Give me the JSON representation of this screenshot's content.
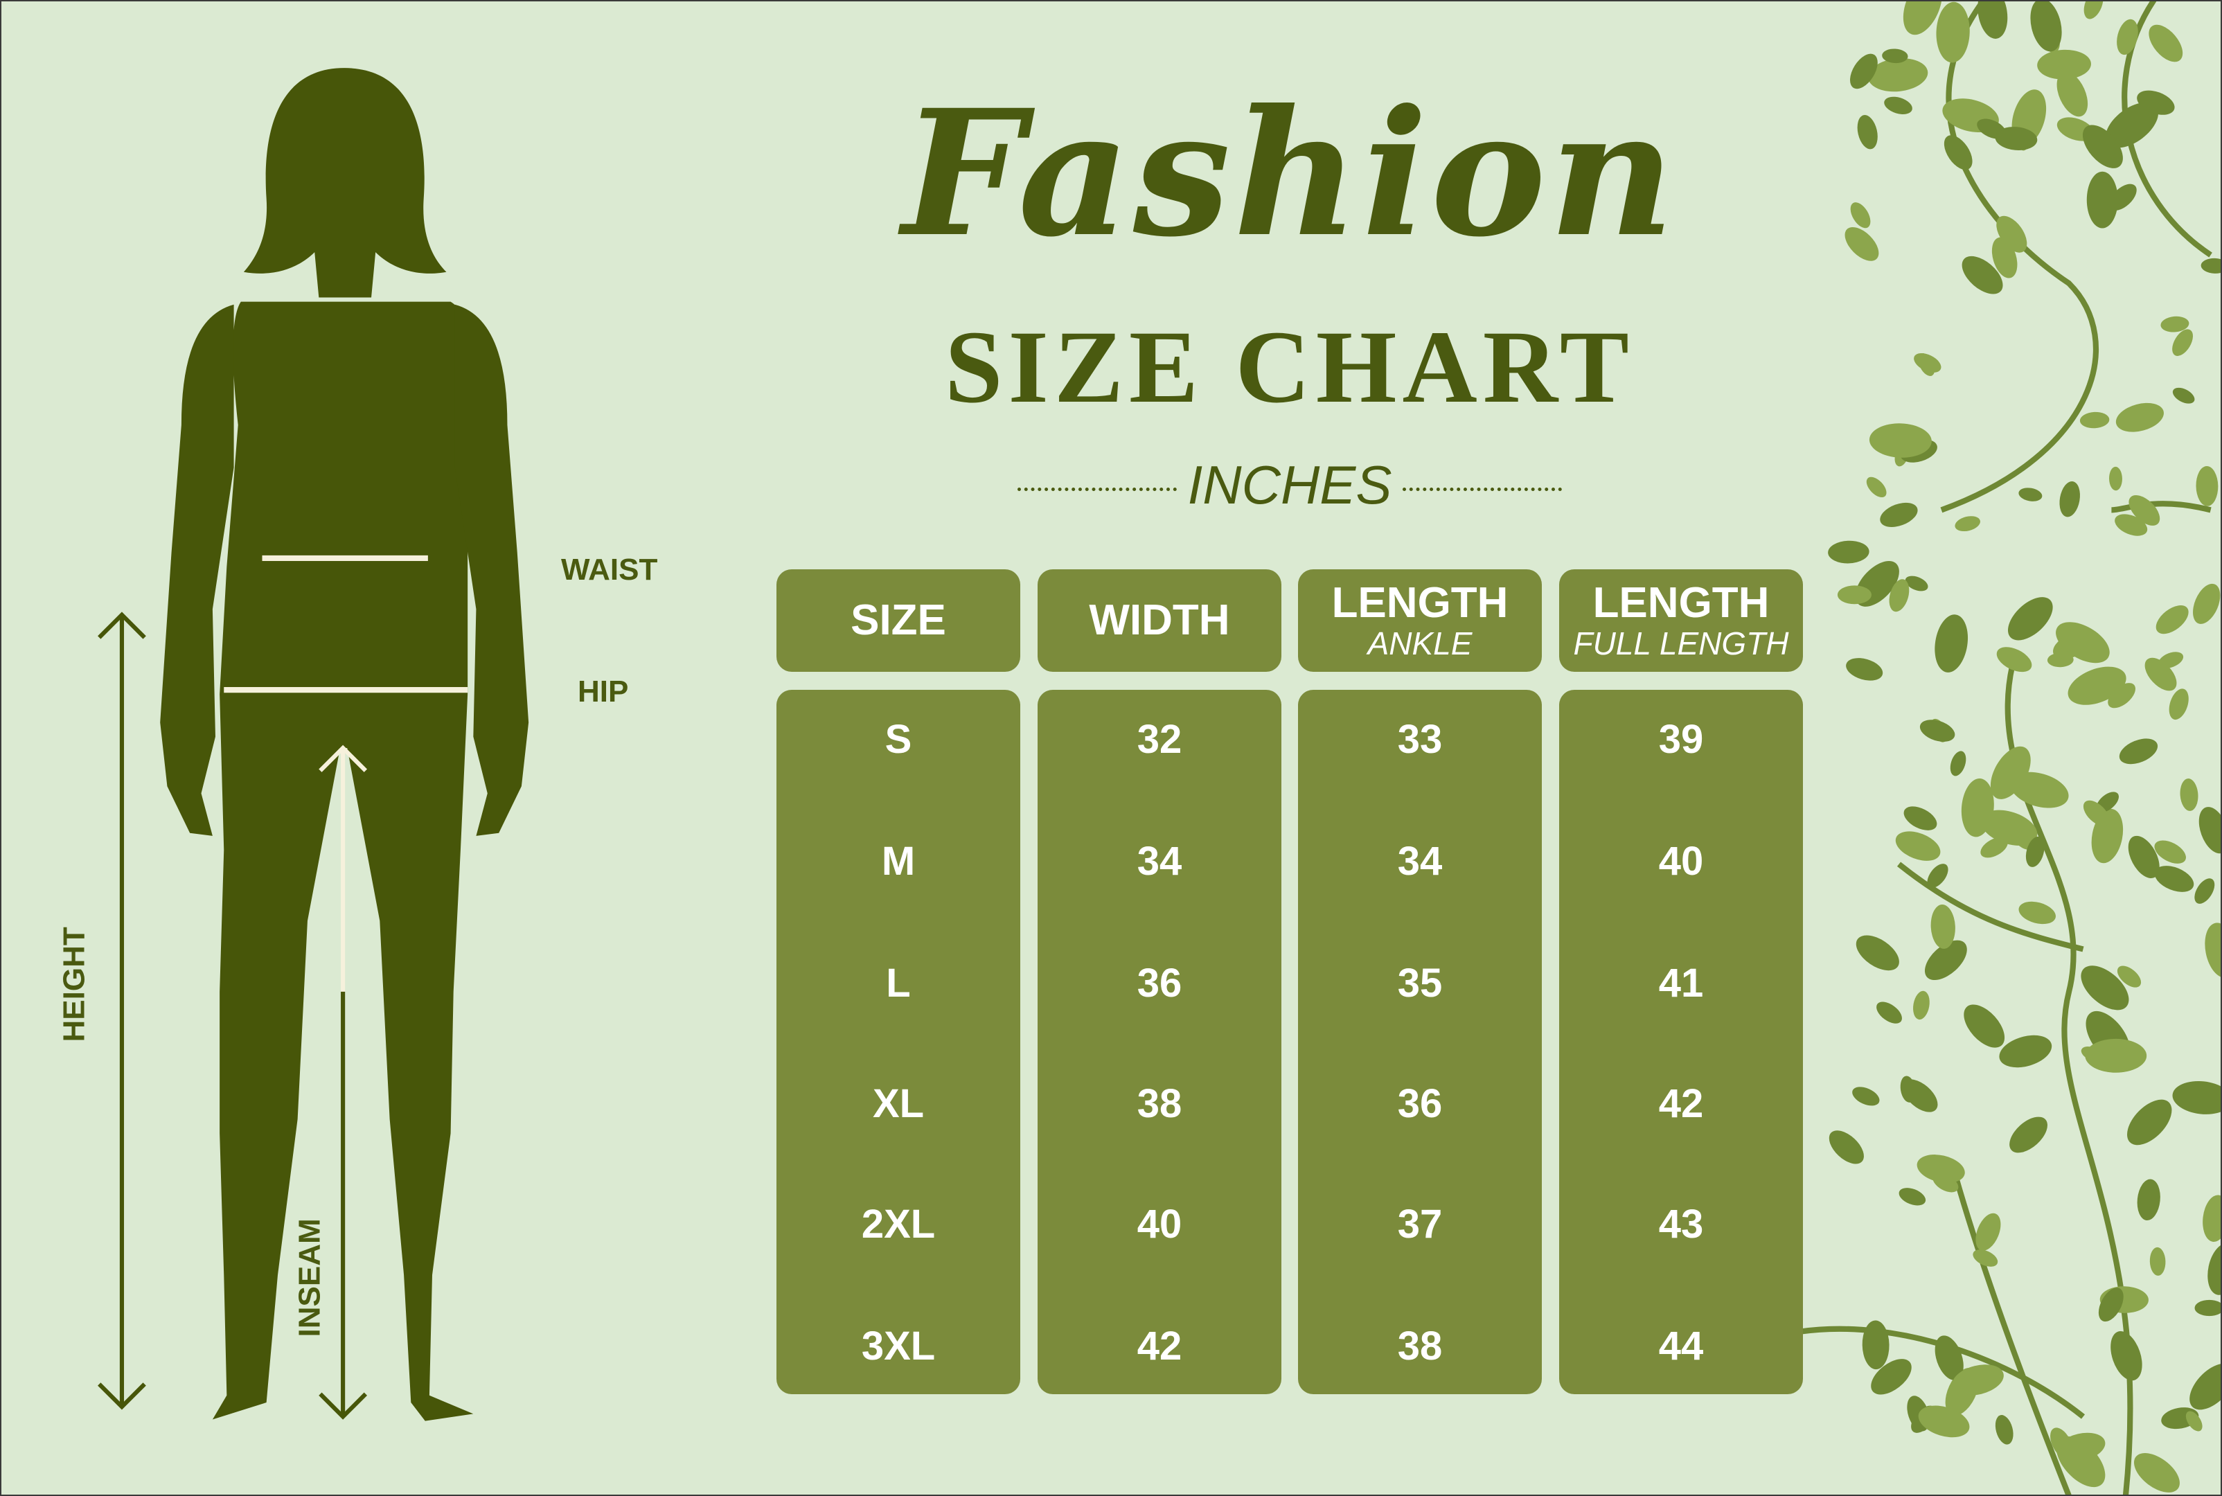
{
  "title": {
    "script": "Fashion",
    "main": "SIZE CHART",
    "units": "INCHES"
  },
  "figure_labels": {
    "waist": "WAIST",
    "hip": "HIP",
    "height": "HEIGHT",
    "inseam": "INSEAM"
  },
  "colors": {
    "background": "#dbead2",
    "box": "#7b8b3b",
    "figure": "#475609",
    "text": "#4a5a10",
    "leaf_light": "#8ca64c",
    "leaf_dark": "#6e8834"
  },
  "table": {
    "columns": [
      {
        "label": "SIZE",
        "sub": ""
      },
      {
        "label": "WIDTH",
        "sub": ""
      },
      {
        "label": "LENGTH",
        "sub": "ANKLE"
      },
      {
        "label": "LENGTH",
        "sub": "FULL LENGTH"
      }
    ],
    "rows": [
      [
        "S",
        "32",
        "33",
        "39"
      ],
      [
        "M",
        "34",
        "34",
        "40"
      ],
      [
        "L",
        "36",
        "35",
        "41"
      ],
      [
        "XL",
        "38",
        "36",
        "42"
      ],
      [
        "2XL",
        "40",
        "37",
        "43"
      ],
      [
        "3XL",
        "42",
        "38",
        "44"
      ]
    ]
  }
}
